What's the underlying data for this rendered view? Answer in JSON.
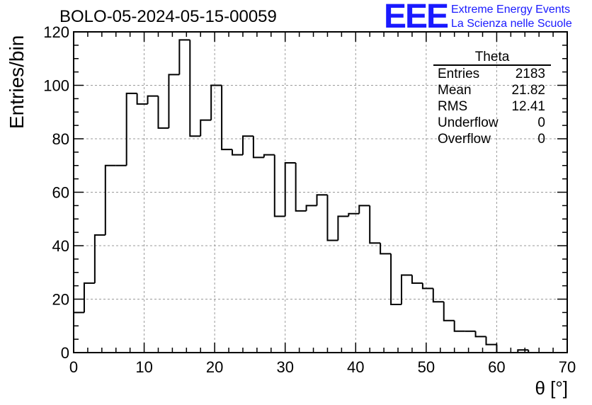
{
  "title": "BOLO-05-2024-05-15-00059",
  "logo": {
    "mark": "EEE",
    "line1": "Extreme Energy Events",
    "line2": "La Scienza nelle Scuole",
    "color": "#1a1aff"
  },
  "stats_box": {
    "title": "Theta",
    "rows": [
      {
        "label": "Entries",
        "value": "2183"
      },
      {
        "label": "Mean",
        "value": "21.82"
      },
      {
        "label": "RMS",
        "value": "12.41"
      },
      {
        "label": "Underflow",
        "value": "0"
      },
      {
        "label": "Overflow",
        "value": "0"
      }
    ]
  },
  "chart_data": {
    "type": "bar",
    "histogram": true,
    "xlabel": "θ [°]",
    "ylabel": "Entries/bin",
    "xlim": [
      0,
      70
    ],
    "ylim": [
      0,
      120
    ],
    "bin_width": 1.5,
    "bin_start": 0,
    "values": [
      15,
      26,
      44,
      70,
      70,
      97,
      93,
      96,
      84,
      104,
      117,
      81,
      87,
      100,
      76,
      74,
      81,
      73,
      74,
      51,
      71,
      53,
      55,
      59,
      42,
      51,
      52,
      55,
      41,
      37,
      18,
      29,
      26,
      24,
      19,
      12,
      8,
      8,
      6,
      3,
      0,
      0,
      1,
      0,
      0,
      0,
      0
    ],
    "x_ticks": [
      "0",
      "10",
      "20",
      "30",
      "40",
      "50",
      "60",
      "70"
    ],
    "y_ticks": [
      "0",
      "20",
      "40",
      "60",
      "80",
      "100",
      "120"
    ],
    "grid": true,
    "line_color": "#000000"
  }
}
